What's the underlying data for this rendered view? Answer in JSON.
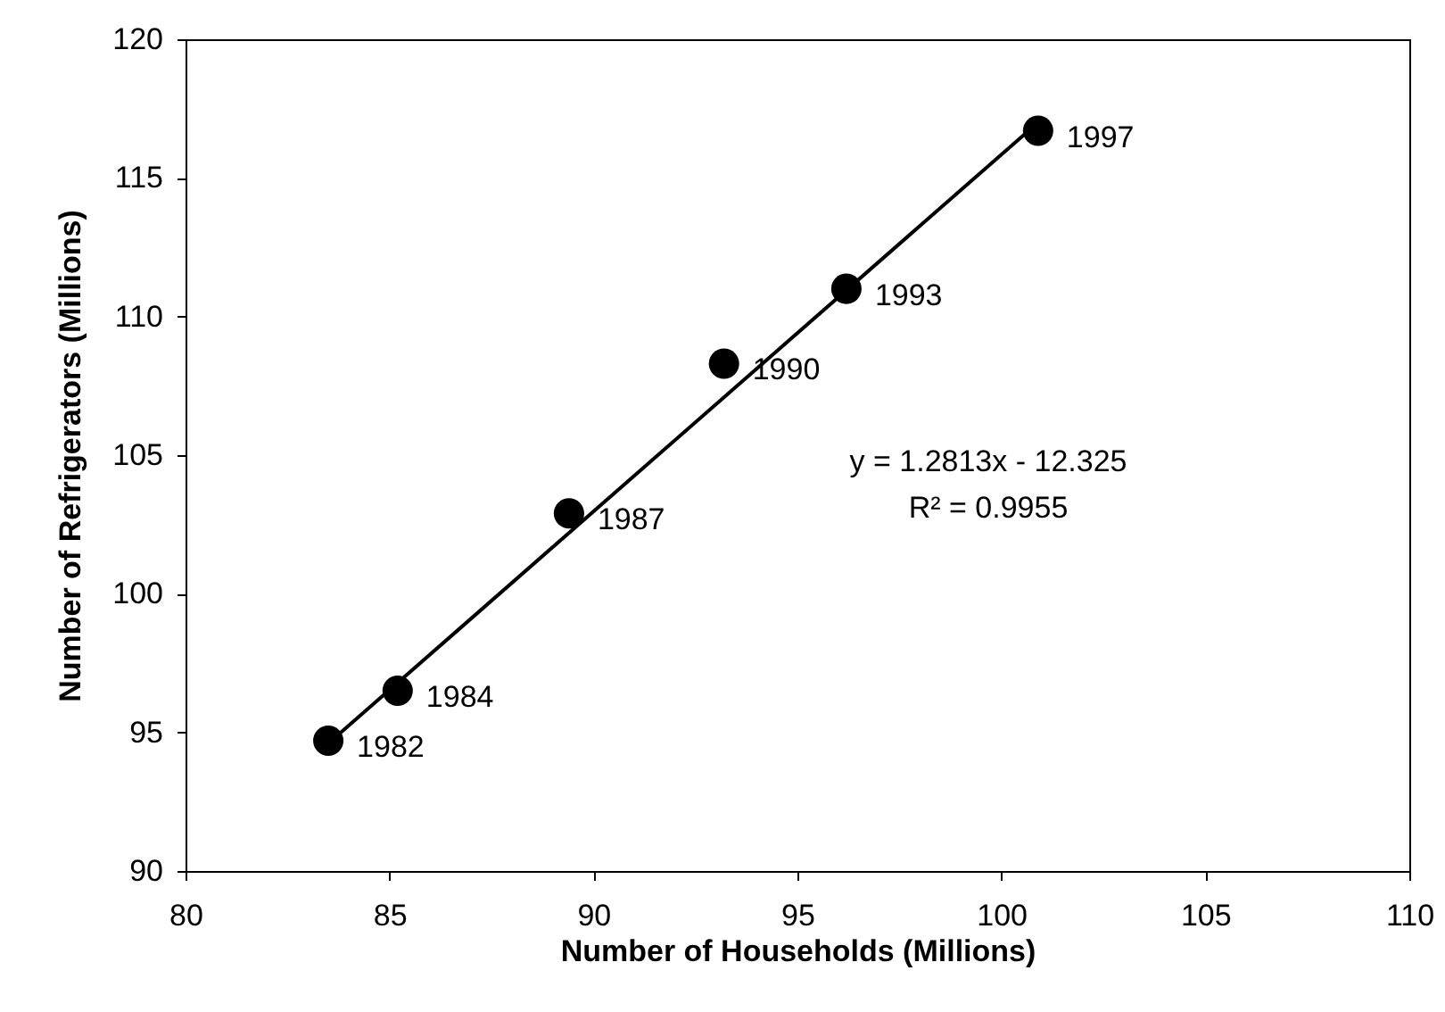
{
  "chart_data": {
    "type": "scatter",
    "xlabel": "Number of Households (Millions)",
    "ylabel": "Number of Refrigerators (Millions)",
    "xlim": [
      80,
      110
    ],
    "xticks": [
      80,
      85,
      90,
      95,
      100,
      105,
      110
    ],
    "ylim": [
      90,
      120
    ],
    "yticks": [
      90,
      95,
      100,
      105,
      110,
      115,
      120
    ],
    "grid": false,
    "series": [
      {
        "marker": "circle",
        "color": "#000000",
        "x": [
          83.5,
          85.2,
          89.4,
          93.2,
          96.2,
          100.9
        ],
        "values": [
          94.7,
          96.5,
          102.9,
          108.3,
          111.0,
          116.7
        ]
      },
      {
        "type": "line",
        "color": "#000000",
        "line_style": "solid",
        "x": [
          83.5,
          100.9
        ],
        "values": [
          94.6,
          117.0
        ]
      }
    ],
    "annotations": [
      {
        "text": "1982",
        "x": 83.5,
        "y": 94.7
      },
      {
        "text": "1984",
        "x": 85.2,
        "y": 96.5
      },
      {
        "text": "1987",
        "x": 89.4,
        "y": 102.9
      },
      {
        "text": "1990",
        "x": 93.2,
        "y": 108.3
      },
      {
        "text": "1993",
        "x": 96.2,
        "y": 111.0
      },
      {
        "text": "1997",
        "x": 100.9,
        "y": 116.7
      },
      "y = 1.2813x - 12.325",
      "R² = 0.9955"
    ]
  }
}
